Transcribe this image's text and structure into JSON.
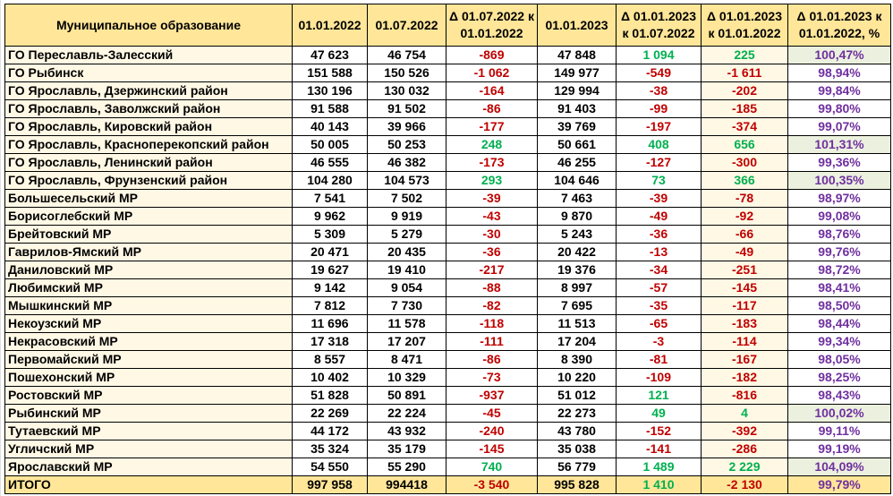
{
  "colors": {
    "header_bg": "#ffe699",
    "negative": "#c00000",
    "positive": "#00b050",
    "percent": "#7030a0",
    "highlight": "#ebf1de",
    "cream": "#fff8e5"
  },
  "headers": [
    "Муниципальное образование",
    "01.01.2022",
    "01.07.2022",
    "Δ 01.07.2022 к 01.01.2022",
    "01.01.2023",
    "Δ 01.01.2023 к 01.07.2022",
    "Δ 01.01.2023 к 01.01.2022",
    "Δ 01.01.2023 к 01.01.2022, %"
  ],
  "rows": [
    [
      "ГО Переславль-Залесский",
      "47 623",
      "46 754",
      "-869",
      "47 848",
      "1 094",
      "225",
      "100,47%"
    ],
    [
      "ГО Рыбинск",
      "151 588",
      "150 526",
      "-1 062",
      "149 977",
      "-549",
      "-1 611",
      "98,94%"
    ],
    [
      "ГО Ярославль, Дзержинский район",
      "130 196",
      "130 032",
      "-164",
      "129 994",
      "-38",
      "-202",
      "99,84%"
    ],
    [
      "ГО Ярославль, Заволжский район",
      "91 588",
      "91 502",
      "-86",
      "91 403",
      "-99",
      "-185",
      "99,80%"
    ],
    [
      "ГО Ярославль, Кировский район",
      "40 143",
      "39 966",
      "-177",
      "39 769",
      "-197",
      "-374",
      "99,07%"
    ],
    [
      "ГО Ярославль, Красноперекопский район",
      "50 005",
      "50 253",
      "248",
      "50 661",
      "408",
      "656",
      "101,31%"
    ],
    [
      "ГО Ярославль, Ленинский район",
      "46 555",
      "46 382",
      "-173",
      "46 255",
      "-127",
      "-300",
      "99,36%"
    ],
    [
      "ГО Ярославль, Фрунзенский район",
      "104 280",
      "104 573",
      "293",
      "104 646",
      "73",
      "366",
      "100,35%"
    ],
    [
      "Большесельский МР",
      "7 541",
      "7 502",
      "-39",
      "7 463",
      "-39",
      "-78",
      "98,97%"
    ],
    [
      "Борисоглебский МР",
      "9 962",
      "9 919",
      "-43",
      "9 870",
      "-49",
      "-92",
      "99,08%"
    ],
    [
      "Брейтовский МР",
      "5 309",
      "5 279",
      "-30",
      "5 243",
      "-36",
      "-66",
      "98,76%"
    ],
    [
      "Гаврилов-Ямский МР",
      "20 471",
      "20 435",
      "-36",
      "20 422",
      "-13",
      "-49",
      "99,76%"
    ],
    [
      "Даниловский МР",
      "19 627",
      "19 410",
      "-217",
      "19 376",
      "-34",
      "-251",
      "98,72%"
    ],
    [
      "Любимский МР",
      "9 142",
      "9 054",
      "-88",
      "8 997",
      "-57",
      "-145",
      "98,41%"
    ],
    [
      "Мышкинский МР",
      "7 812",
      "7 730",
      "-82",
      "7 695",
      "-35",
      "-117",
      "98,50%"
    ],
    [
      "Некоузский МР",
      "11 696",
      "11 578",
      "-118",
      "11 513",
      "-65",
      "-183",
      "98,44%"
    ],
    [
      "Некрасовский МР",
      "17 318",
      "17 207",
      "-111",
      "17 204",
      "-3",
      "-114",
      "99,34%"
    ],
    [
      "Первомайский МР",
      "8 557",
      "8 471",
      "-86",
      "8 390",
      "-81",
      "-167",
      "98,05%"
    ],
    [
      "Пошехонский МР",
      "10 402",
      "10 329",
      "-73",
      "10 220",
      "-109",
      "-182",
      "98,25%"
    ],
    [
      "Ростовский МР",
      "51 828",
      "50 891",
      "-937",
      "51 012",
      "121",
      "-816",
      "98,43%"
    ],
    [
      "Рыбинский МР",
      "22 269",
      "22 224",
      "-45",
      "22 273",
      "49",
      "4",
      "100,02%"
    ],
    [
      "Тутаевский МР",
      "44 172",
      "43 932",
      "-240",
      "43 780",
      "-152",
      "-392",
      "99,11%"
    ],
    [
      "Угличский МР",
      "35 324",
      "35 179",
      "-145",
      "35 038",
      "-141",
      "-286",
      "99,19%"
    ],
    [
      "Ярославский МР",
      "54 550",
      "55 290",
      "740",
      "56 779",
      "1 489",
      "2 229",
      "104,09%"
    ]
  ],
  "total": [
    "ИТОГО",
    "997 958",
    "994418",
    "-3 540",
    "995 828",
    "1 410",
    "-2 130",
    "99,79%"
  ]
}
